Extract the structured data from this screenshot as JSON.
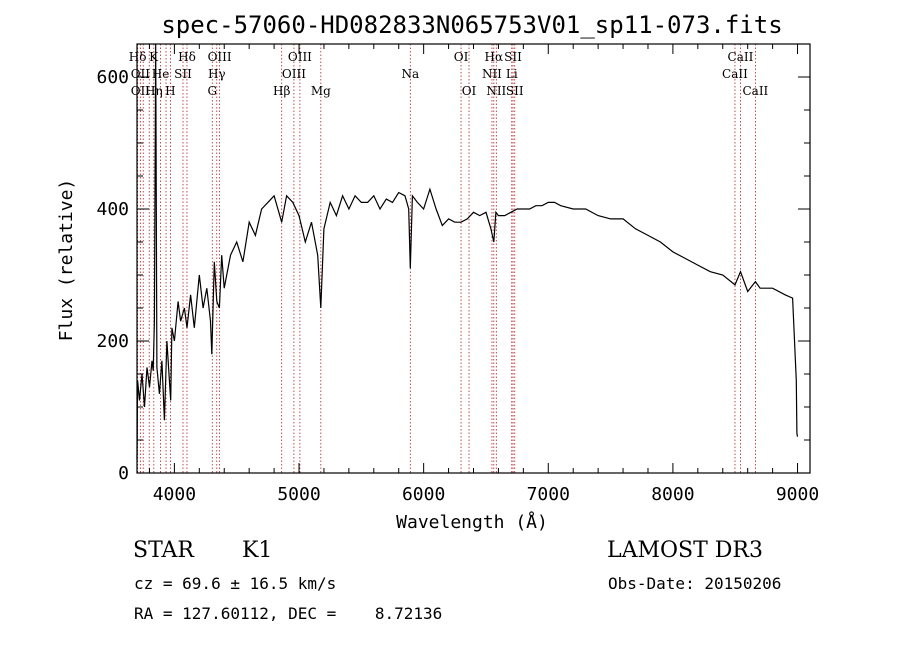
{
  "chart_data": {
    "type": "line",
    "title": "spec-57060-HD082833N065753V01_sp11-073.fits",
    "xlabel": "Wavelength (Å)",
    "ylabel": "Flux (relative)",
    "xlim": [
      3700,
      9100
    ],
    "ylim": [
      0,
      650
    ],
    "xticks": [
      4000,
      5000,
      6000,
      7000,
      8000,
      9000
    ],
    "yticks": [
      0,
      200,
      400,
      600
    ],
    "series": [
      {
        "name": "spectrum",
        "x": [
          3700,
          3705,
          3720,
          3740,
          3760,
          3780,
          3800,
          3820,
          3830,
          3840,
          3850,
          3860,
          3880,
          3900,
          3920,
          3940,
          3960,
          3970,
          3980,
          4000,
          4030,
          4050,
          4080,
          4101,
          4130,
          4160,
          4200,
          4230,
          4260,
          4290,
          4300,
          4320,
          4340,
          4361,
          4380,
          4400,
          4450,
          4500,
          4550,
          4600,
          4650,
          4700,
          4750,
          4800,
          4861,
          4900,
          4950,
          5000,
          5050,
          5100,
          5150,
          5175,
          5200,
          5250,
          5300,
          5350,
          5400,
          5450,
          5500,
          5550,
          5600,
          5650,
          5700,
          5750,
          5800,
          5850,
          5880,
          5893,
          5910,
          5950,
          6000,
          6050,
          6100,
          6150,
          6200,
          6250,
          6300,
          6350,
          6400,
          6450,
          6500,
          6540,
          6563,
          6580,
          6600,
          6650,
          6700,
          6750,
          6800,
          6850,
          6900,
          6950,
          7000,
          7050,
          7100,
          7200,
          7300,
          7400,
          7500,
          7600,
          7700,
          7800,
          7900,
          8000,
          8100,
          8200,
          8300,
          8400,
          8498,
          8542,
          8600,
          8662,
          8700,
          8800,
          8900,
          8960,
          8990,
          8995,
          9000
        ],
        "y": [
          20,
          140,
          110,
          150,
          100,
          160,
          130,
          170,
          155,
          230,
          650,
          160,
          120,
          170,
          80,
          200,
          140,
          110,
          220,
          200,
          260,
          230,
          250,
          220,
          270,
          220,
          300,
          250,
          280,
          230,
          180,
          320,
          260,
          250,
          330,
          280,
          330,
          350,
          320,
          380,
          360,
          400,
          410,
          420,
          380,
          420,
          410,
          390,
          350,
          380,
          330,
          250,
          370,
          410,
          390,
          420,
          400,
          420,
          410,
          410,
          420,
          400,
          415,
          410,
          425,
          420,
          400,
          310,
          420,
          410,
          400,
          430,
          400,
          375,
          385,
          380,
          380,
          385,
          395,
          390,
          395,
          370,
          350,
          395,
          390,
          390,
          395,
          400,
          400,
          400,
          405,
          405,
          410,
          410,
          405,
          400,
          400,
          390,
          385,
          385,
          370,
          360,
          350,
          335,
          325,
          315,
          305,
          300,
          285,
          305,
          275,
          290,
          280,
          280,
          270,
          265,
          140,
          60,
          55
        ]
      }
    ],
    "spectral_lines": [
      {
        "label": "Hδ",
        "wl": 3705,
        "row": 0
      },
      {
        "label": "K",
        "wl": 3833,
        "row": 0
      },
      {
        "label": "Hδ",
        "wl": 4101,
        "row": 0
      },
      {
        "label": "OIII",
        "wl": 4363,
        "row": 0
      },
      {
        "label": "OIII",
        "wl": 5007,
        "row": 0
      },
      {
        "label": "OI",
        "wl": 6300,
        "row": 0
      },
      {
        "label": "Hα",
        "wl": 6563,
        "row": 0
      },
      {
        "label": "SII",
        "wl": 6717,
        "row": 0
      },
      {
        "label": "CaII",
        "wl": 8542,
        "row": 0
      },
      {
        "label": "OII",
        "wl": 3727,
        "row": 1
      },
      {
        "label": "He",
        "wl": 3889,
        "row": 1
      },
      {
        "label": "SII",
        "wl": 4069,
        "row": 1
      },
      {
        "label": "Hγ",
        "wl": 4340,
        "row": 1
      },
      {
        "label": "OIII",
        "wl": 4959,
        "row": 1
      },
      {
        "label": "Na",
        "wl": 5893,
        "row": 1
      },
      {
        "label": "NII",
        "wl": 6548,
        "row": 1
      },
      {
        "label": "Li",
        "wl": 6707,
        "row": 1
      },
      {
        "label": "CaII",
        "wl": 8498,
        "row": 1
      },
      {
        "label": "OII",
        "wl": 3727,
        "row": 2
      },
      {
        "label": "Hη",
        "wl": 3835,
        "row": 2
      },
      {
        "label": "H",
        "wl": 3968,
        "row": 2
      },
      {
        "label": "G",
        "wl": 4304,
        "row": 2
      },
      {
        "label": "Hβ",
        "wl": 4861,
        "row": 2
      },
      {
        "label": "Mg",
        "wl": 5175,
        "row": 2
      },
      {
        "label": "OI",
        "wl": 6364,
        "row": 2
      },
      {
        "label": "NII",
        "wl": 6583,
        "row": 2
      },
      {
        "label": "SII",
        "wl": 6731,
        "row": 2
      },
      {
        "label": "CaII",
        "wl": 8662,
        "row": 2
      }
    ],
    "line_marker_wl": [
      3705,
      3727,
      3750,
      3798,
      3835,
      3889,
      3933,
      3968,
      4069,
      4101,
      4304,
      4340,
      4363,
      4861,
      4959,
      5007,
      5175,
      5893,
      6300,
      6364,
      6548,
      6563,
      6583,
      6707,
      6717,
      6731,
      8498,
      8542,
      8662
    ],
    "colors": {
      "line_marker": "#b22222",
      "spectrum": "#000000",
      "axes": "#000000"
    }
  },
  "info": {
    "object_type": "STAR",
    "subclass": "K1",
    "survey": "LAMOST DR3",
    "cz": "cz = 69.6 ± 16.5 km/s",
    "obs_date": "Obs-Date: 20150206",
    "coords": "RA = 127.60112, DEC =    8.72136"
  }
}
